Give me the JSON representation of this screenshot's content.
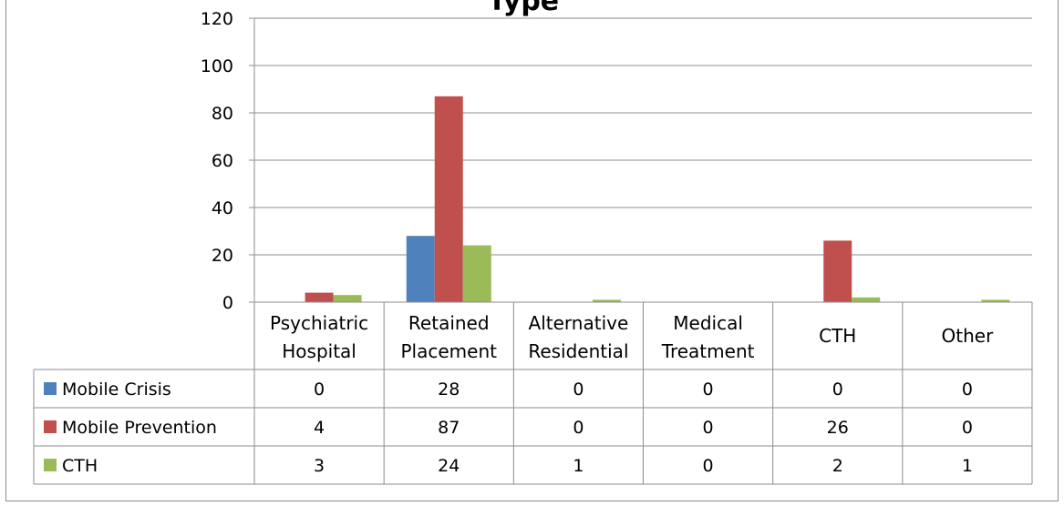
{
  "chart_data": {
    "type": "bar",
    "title": "Type",
    "categories": [
      [
        "Psychiatric",
        "Hospital"
      ],
      [
        "Retained",
        "Placement"
      ],
      [
        "Alternative",
        "Residential"
      ],
      [
        "Medical",
        "Treatment"
      ],
      [
        "CTH"
      ],
      [
        "Other"
      ]
    ],
    "series": [
      {
        "name": "Mobile Crisis",
        "color": "#4f81bd",
        "values": [
          0,
          28,
          0,
          0,
          0,
          0
        ]
      },
      {
        "name": "Mobile Prevention",
        "color": "#c0504d",
        "values": [
          4,
          87,
          0,
          0,
          26,
          0
        ]
      },
      {
        "name": "CTH",
        "color": "#9bbb59",
        "values": [
          3,
          24,
          1,
          0,
          2,
          1
        ]
      }
    ],
    "ylim": [
      0,
      120
    ],
    "yticks": [
      0,
      20,
      40,
      60,
      80,
      100,
      120
    ],
    "grid": true,
    "legend": "data-table-left"
  }
}
